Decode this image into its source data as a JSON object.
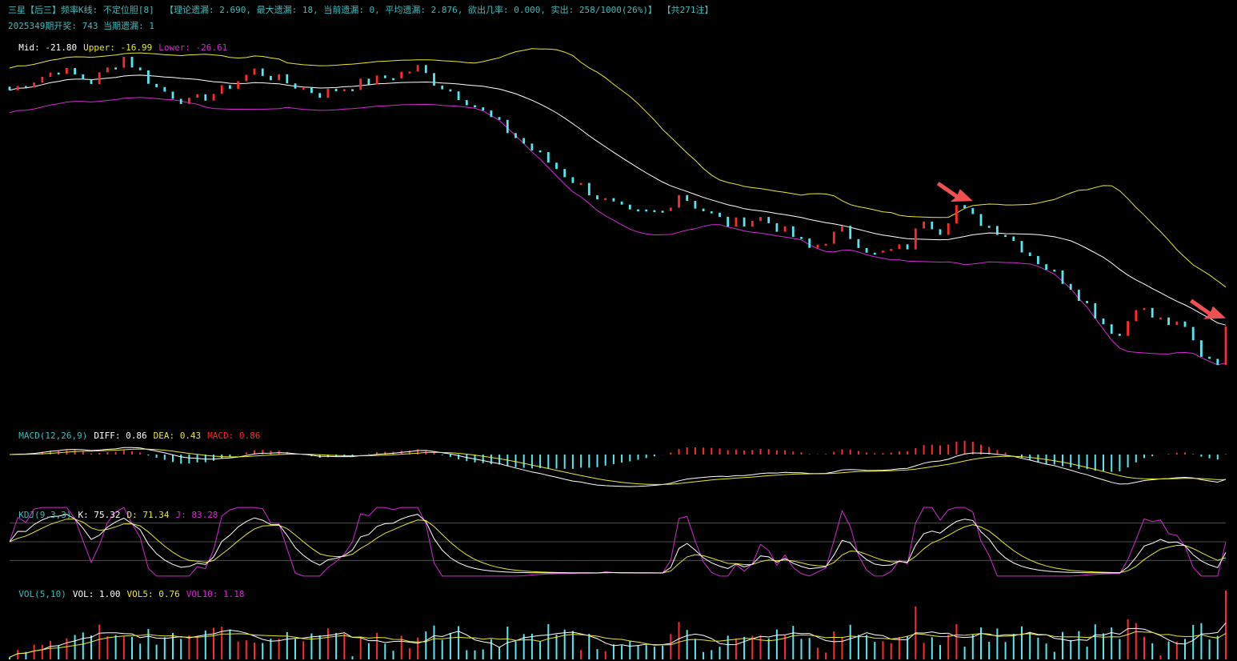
{
  "colors": {
    "background": "#000000",
    "label": "#3fbcbc",
    "up": "#ff2a2a",
    "down": "#55e8f0",
    "mid_line": "#ffffff",
    "upper_line": "#e8e82a",
    "lower_line": "#d32ad3",
    "k_line": "#ffffff",
    "d_line": "#e8e82a",
    "j_line": "#d32ad3",
    "arrow": "#f05050",
    "gridline": "#505050"
  },
  "header": {
    "line1": "三星【后三】频率K线: 不定位胆[8]  【理论遗漏: 2.690, 最大遗漏: 18, 当前遗漏: 0, 平均遗漏: 2.876, 欲出几率: 0.000, 实出: 258/1000(26%)】 【共271注】",
    "line2": "2025349期开奖: 743 当期遗漏: 1"
  },
  "boll": {
    "mid_label": "Mid: -21.80",
    "upper_label": "Upper: -16.99",
    "lower_label": "Lower: -26.61"
  },
  "macd": {
    "name": "MACD(12,26,9)",
    "diff": "DIFF: 0.86",
    "dea": "DEA: 0.43",
    "macd": "MACD: 0.86"
  },
  "kdj": {
    "name": "KDJ(9,3,3)",
    "k": "K: 75.32",
    "d": "D: 71.34",
    "j": "J: 83.28"
  },
  "vol": {
    "name": "VOL(5,10)",
    "vol": "VOL: 1.00",
    "vol5": "VOL5: 0.76",
    "vol10": "VOL10: 1.18"
  },
  "chart_data": {
    "type": "candlestick",
    "bars": 150,
    "description_note": "",
    "close_path": [
      [
        0,
        -1.2
      ],
      [
        6,
        0.5
      ],
      [
        10,
        -0.5
      ],
      [
        14,
        1.5
      ],
      [
        18,
        -1
      ],
      [
        22,
        -2.2
      ],
      [
        26,
        -1.2
      ],
      [
        30,
        0.4
      ],
      [
        34,
        -0.6
      ],
      [
        38,
        -1.5
      ],
      [
        42,
        -0.8
      ],
      [
        46,
        -0.2
      ],
      [
        50,
        0.6
      ],
      [
        52,
        -0.5
      ],
      [
        56,
        -2.0
      ],
      [
        60,
        -4.0
      ],
      [
        64,
        -6.0
      ],
      [
        68,
        -8.0
      ],
      [
        72,
        -9.8
      ],
      [
        76,
        -11.2
      ],
      [
        80,
        -11.0
      ],
      [
        82,
        -9.5
      ],
      [
        84,
        -10.5
      ],
      [
        88,
        -12.0
      ],
      [
        92,
        -11.5
      ],
      [
        96,
        -13.0
      ],
      [
        98,
        -14.0
      ],
      [
        102,
        -12.5
      ],
      [
        106,
        -14.5
      ],
      [
        110,
        -13.8
      ],
      [
        112,
        -11.5
      ],
      [
        114,
        -12.5
      ],
      [
        116,
        -10.5
      ],
      [
        118,
        -11.5
      ],
      [
        122,
        -12.8
      ],
      [
        126,
        -15.0
      ],
      [
        130,
        -17.0
      ],
      [
        134,
        -20.0
      ],
      [
        136,
        -21.0
      ],
      [
        138,
        -18.5
      ],
      [
        140,
        -19.5
      ],
      [
        144,
        -20.5
      ],
      [
        146,
        -22.5
      ],
      [
        148,
        -23.0
      ],
      [
        149,
        -20.6
      ]
    ],
    "kdj_levels": [
      80,
      50,
      20
    ]
  }
}
